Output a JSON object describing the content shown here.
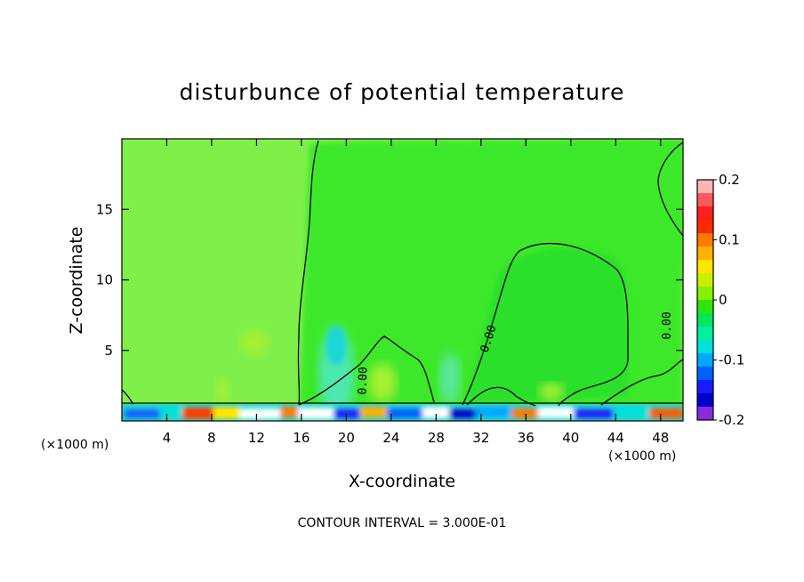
{
  "chart_data": {
    "type": "heatmap",
    "title": "disturbunce of potential temperature",
    "xlabel": "X-coordinate",
    "ylabel": "Z-coordinate",
    "x_unit": "(×1000 m)",
    "xlim": [
      0,
      50
    ],
    "ylim": [
      0,
      20
    ],
    "x_ticks": [
      "4",
      "8",
      "12",
      "16",
      "20",
      "24",
      "28",
      "32",
      "36",
      "40",
      "44",
      "48"
    ],
    "y_ticks": [
      "5",
      "10",
      "15"
    ],
    "colorbar": {
      "range": [
        -0.2,
        0.2
      ],
      "labels": [
        "0.2",
        "0.1",
        "0",
        "-0.1",
        "-0.2"
      ],
      "colors": [
        "#ffb4b4",
        "#ff5a5a",
        "#ff1e1e",
        "#ff2a00",
        "#ff7a00",
        "#ffb000",
        "#ffe600",
        "#c8f000",
        "#86f000",
        "#2ee60a",
        "#00e85a",
        "#00eea0",
        "#00e0d8",
        "#00a8ff",
        "#0060ff",
        "#1a1aff",
        "#0000c8",
        "#8a2be2"
      ]
    },
    "background_color": "#7ff04a",
    "contour_level": "0.00",
    "contour_labels": [
      "0.00",
      "0.00",
      "0.00"
    ],
    "footer": "CONTOUR INTERVAL = 3.000E-01"
  }
}
